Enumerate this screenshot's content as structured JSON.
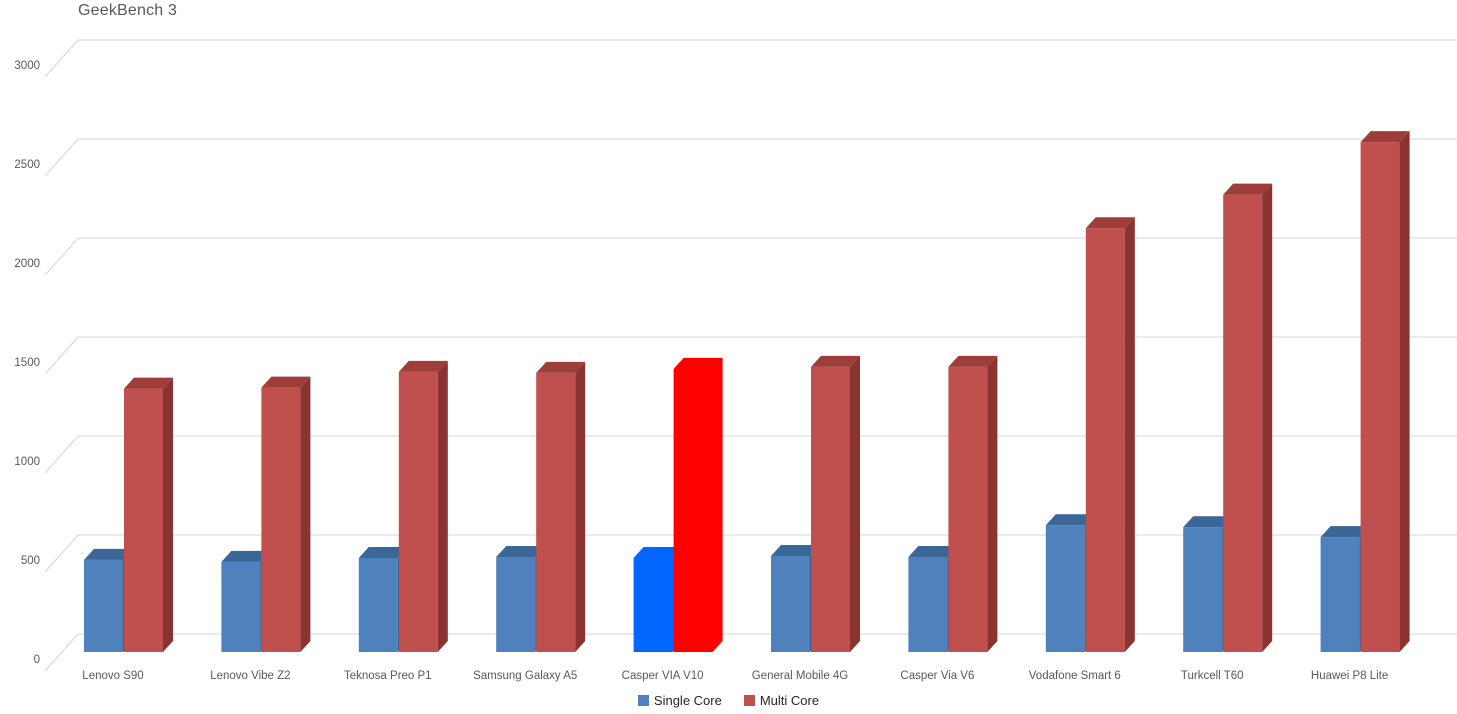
{
  "header": {
    "title": "GeekBench 3"
  },
  "colors": {
    "background": "#FFFFFF",
    "grid": "#D6D6D6",
    "axis_text": "#595959",
    "title_text": "#595959",
    "legend_text": "#262626"
  },
  "chart_data": {
    "type": "bar",
    "style": "3d-clustered-column",
    "title": "GeekBench 3",
    "xlabel": "",
    "ylabel": "",
    "ylim": [
      0,
      3000
    ],
    "yticks": [
      0,
      500,
      1000,
      1500,
      2000,
      2500,
      3000
    ],
    "grid": true,
    "legend_position": "bottom",
    "categories": [
      "Lenovo S90",
      "Lenovo Vibe Z2",
      "Teknosa Preo P1",
      "Samsung Galaxy A5",
      "Casper VIA V10",
      "General Mobile 4G",
      "Casper Via V6",
      "Vodafone Smart 6",
      "Turkcell T60",
      "Huawei P8 Lite"
    ],
    "series": [
      {
        "name": "Single Core",
        "color": "#4F81BD",
        "shade_top": "#3A6698",
        "shade_side": "#365E8D",
        "values": [
          465,
          455,
          475,
          480,
          475,
          485,
          480,
          640,
          630,
          580
        ]
      },
      {
        "name": "Multi Core",
        "color": "#C0504D",
        "shade_top": "#9E3D3A",
        "shade_side": "#8B3331",
        "values": [
          1330,
          1335,
          1415,
          1410,
          1430,
          1440,
          1440,
          2140,
          2310,
          2575
        ]
      }
    ],
    "highlight": {
      "category": "Casper VIA V10",
      "colors": [
        "#0066FF",
        "#FF0000"
      ]
    }
  }
}
